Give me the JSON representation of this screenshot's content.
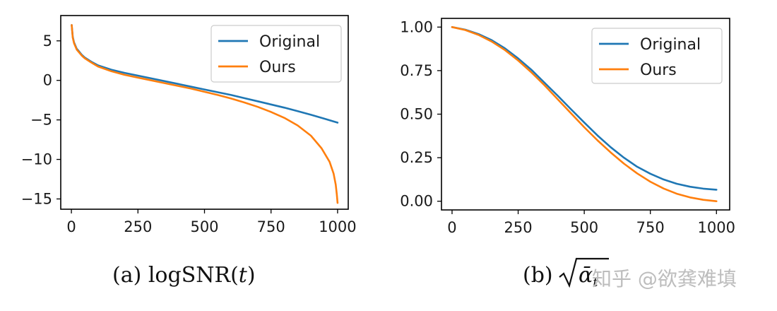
{
  "chart_data": [
    {
      "type": "line",
      "caption": "(a) logSNR(t)",
      "xlim": [
        -40,
        1040
      ],
      "ylim": [
        -16.3,
        8.2
      ],
      "xticks": [
        0,
        250,
        500,
        750,
        1000
      ],
      "yticks": [
        5,
        0,
        -5,
        -10,
        -15
      ],
      "xtick_labels": [
        "0",
        "250",
        "500",
        "750",
        "1000"
      ],
      "ytick_labels": [
        "5",
        "0",
        "−5",
        "−10",
        "−15"
      ],
      "grid": false,
      "legend_position": "top-right",
      "series": [
        {
          "name": "Original",
          "color": "#1f77b4",
          "x": [
            1,
            5,
            10,
            20,
            30,
            40,
            50,
            75,
            100,
            150,
            200,
            250,
            300,
            350,
            400,
            450,
            500,
            550,
            600,
            650,
            700,
            750,
            800,
            850,
            900,
            950,
            1000
          ],
          "y": [
            7.0,
            5.5,
            4.8,
            4.0,
            3.6,
            3.2,
            2.9,
            2.35,
            1.9,
            1.35,
            0.95,
            0.6,
            0.25,
            -0.1,
            -0.45,
            -0.8,
            -1.15,
            -1.5,
            -1.85,
            -2.25,
            -2.65,
            -3.05,
            -3.45,
            -3.9,
            -4.35,
            -4.85,
            -5.35
          ]
        },
        {
          "name": "Ours",
          "color": "#ff7f0e",
          "x": [
            1,
            5,
            10,
            20,
            30,
            40,
            50,
            75,
            100,
            150,
            200,
            250,
            300,
            350,
            400,
            450,
            500,
            550,
            600,
            650,
            700,
            750,
            800,
            850,
            900,
            940,
            970,
            985,
            993,
            997,
            1000
          ],
          "y": [
            7.0,
            5.4,
            4.7,
            3.9,
            3.5,
            3.1,
            2.8,
            2.25,
            1.75,
            1.15,
            0.7,
            0.35,
            0.0,
            -0.35,
            -0.7,
            -1.05,
            -1.45,
            -1.85,
            -2.3,
            -2.8,
            -3.35,
            -4.0,
            -4.75,
            -5.7,
            -7.0,
            -8.6,
            -10.3,
            -11.8,
            -13.2,
            -14.4,
            -15.5
          ]
        }
      ]
    },
    {
      "type": "line",
      "caption": "(b) √āt",
      "xlim": [
        -40,
        1050
      ],
      "ylim": [
        -0.05,
        1.05
      ],
      "xticks": [
        0,
        250,
        500,
        750,
        1000
      ],
      "yticks": [
        1.0,
        0.75,
        0.5,
        0.25,
        0.0
      ],
      "xtick_labels": [
        "0",
        "250",
        "500",
        "750",
        "1000"
      ],
      "ytick_labels": [
        "1.00",
        "0.75",
        "0.50",
        "0.25",
        "0.00"
      ],
      "grid": false,
      "legend_position": "top-right",
      "series": [
        {
          "name": "Original",
          "color": "#1f77b4",
          "x": [
            0,
            50,
            100,
            150,
            200,
            250,
            300,
            350,
            400,
            450,
            500,
            550,
            600,
            650,
            700,
            750,
            800,
            850,
            900,
            950,
            1000
          ],
          "y": [
            1.0,
            0.985,
            0.96,
            0.925,
            0.878,
            0.82,
            0.755,
            0.68,
            0.605,
            0.528,
            0.452,
            0.378,
            0.31,
            0.25,
            0.198,
            0.158,
            0.125,
            0.1,
            0.083,
            0.072,
            0.066
          ]
        },
        {
          "name": "Ours",
          "color": "#ff7f0e",
          "x": [
            0,
            50,
            100,
            150,
            200,
            250,
            300,
            350,
            400,
            450,
            500,
            550,
            600,
            650,
            700,
            750,
            800,
            850,
            900,
            950,
            1000
          ],
          "y": [
            1.0,
            0.983,
            0.955,
            0.917,
            0.868,
            0.808,
            0.74,
            0.665,
            0.585,
            0.505,
            0.425,
            0.35,
            0.28,
            0.216,
            0.16,
            0.112,
            0.073,
            0.043,
            0.022,
            0.008,
            0.0
          ]
        }
      ]
    }
  ],
  "watermark": "知乎 @欲龚难填"
}
